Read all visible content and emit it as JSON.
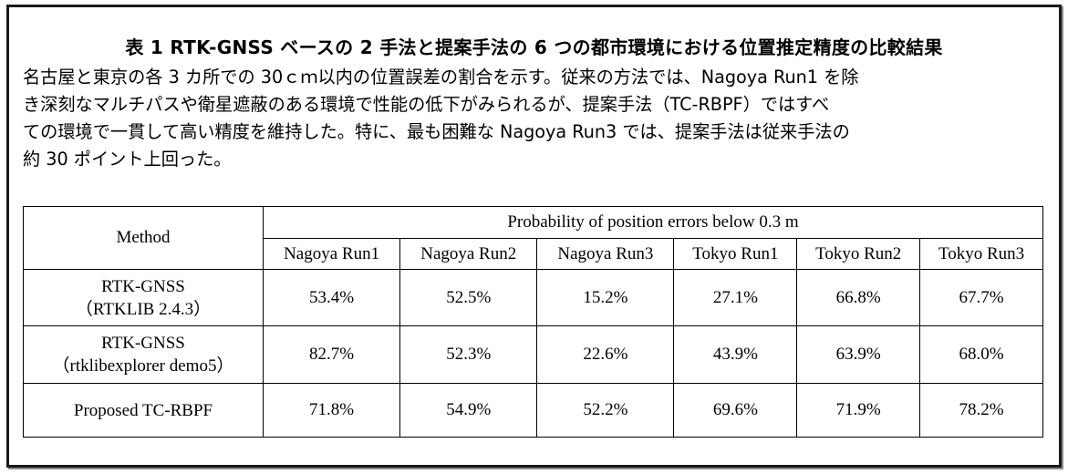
{
  "caption": {
    "title": "表 1 RTK-GNSS ベースの 2 手法と提案手法の 6 つの都市環境における位置推定精度の比較結果",
    "lines": [
      "名古屋と東京の各 3 カ所での 30ｃｍ以内の位置誤差の割合を示す。従来の方法では、Nagoya Run1 を除",
      "き深刻なマルチパスや衛星遮蔽のある環境で性能の低下がみられるが、提案手法（TC-RBPF）ではすべ",
      "ての環境で一貫して高い精度を維持した。特に、最も困難な Nagoya Run3 では、提案手法は従来手法の",
      "約 30 ポイント上回った。"
    ]
  },
  "table": {
    "method_header": "Method",
    "group_header": "Probability of position errors below 0.3 m",
    "columns": [
      "Nagoya Run1",
      "Nagoya Run2",
      "Nagoya Run3",
      "Tokyo Run1",
      "Tokyo Run2",
      "Tokyo Run3"
    ],
    "rows": [
      {
        "method_line1": "RTK-GNSS",
        "method_line2": "（RTKLIB 2.4.3）",
        "values": [
          "53.4%",
          "52.5%",
          "15.2%",
          "27.1%",
          "66.8%",
          "67.7%"
        ],
        "bold": [
          false,
          false,
          false,
          false,
          false,
          false
        ]
      },
      {
        "method_line1": "RTK-GNSS",
        "method_line2": "（rtklibexplorer demo5）",
        "values": [
          "82.7%",
          "52.3%",
          "22.6%",
          "43.9%",
          "63.9%",
          "68.0%"
        ],
        "bold": [
          true,
          false,
          false,
          false,
          false,
          false
        ]
      },
      {
        "method_line1": "Proposed TC-RBPF",
        "method_line2": "",
        "values": [
          "71.8%",
          "54.9%",
          "52.2%",
          "69.6%",
          "71.9%",
          "78.2%"
        ],
        "bold": [
          false,
          true,
          true,
          true,
          true,
          true
        ]
      }
    ]
  }
}
